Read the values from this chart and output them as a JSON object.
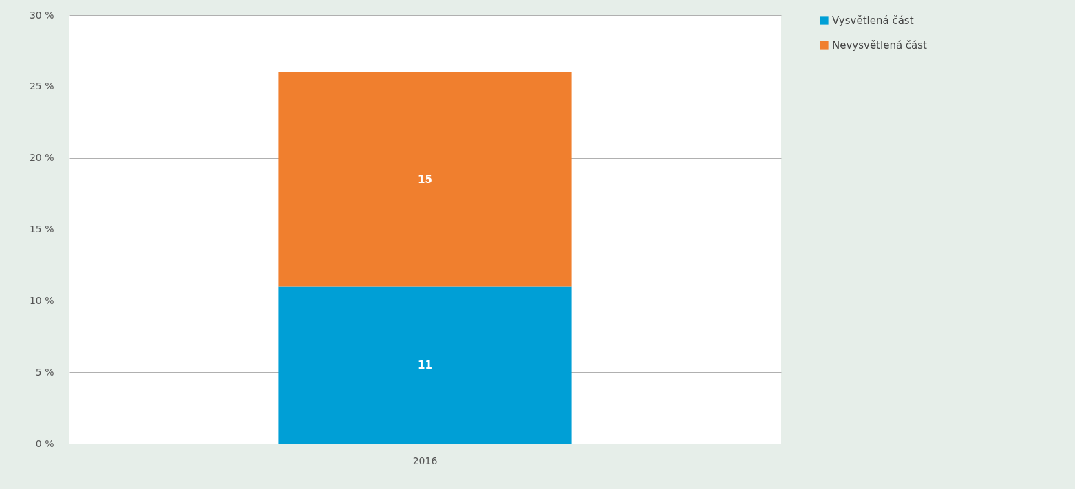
{
  "chart_data": {
    "type": "bar",
    "stacked": true,
    "categories": [
      "2016"
    ],
    "series": [
      {
        "name": "Vysvětlená část",
        "color": "#009fd6",
        "values": [
          11
        ]
      },
      {
        "name": "Nevysvětlená část",
        "color": "#f07f2e",
        "values": [
          15
        ]
      }
    ],
    "ylim": [
      0,
      30
    ],
    "yticks": [
      {
        "value": 0,
        "label": "0 %"
      },
      {
        "value": 5,
        "label": "5 %"
      },
      {
        "value": 10,
        "label": "10 %"
      },
      {
        "value": 15,
        "label": "15 %"
      },
      {
        "value": 20,
        "label": "20 %"
      },
      {
        "value": 25,
        "label": "25 %"
      },
      {
        "value": 30,
        "label": "30 %"
      }
    ],
    "grid": "y",
    "legend": "top right",
    "data_labels": true
  }
}
